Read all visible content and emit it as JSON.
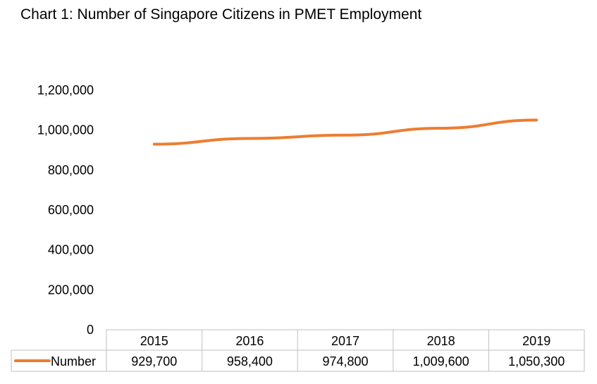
{
  "chart_data": {
    "type": "line",
    "title": "Chart 1: Number of Singapore Citizens in PMET Employment",
    "xlabel": "",
    "ylabel": "",
    "categories": [
      "2015",
      "2016",
      "2017",
      "2018",
      "2019"
    ],
    "series": [
      {
        "name": "Number",
        "values": [
          929700,
          958400,
          974800,
          1009600,
          1050300
        ],
        "value_labels": [
          "929,700",
          "958,400",
          "974,800",
          "1,009,600",
          "1,050,300"
        ],
        "color": "#ED7D31"
      }
    ],
    "ylim": [
      0,
      1200000
    ],
    "yticks": [
      0,
      200000,
      400000,
      600000,
      800000,
      1000000,
      1200000
    ],
    "ytick_labels": [
      "0",
      "200,000",
      "400,000",
      "600,000",
      "800,000",
      "1,000,000",
      "1,200,000"
    ],
    "grid": false,
    "legend": "data-table",
    "table_border_color": "#BFBFBF"
  }
}
